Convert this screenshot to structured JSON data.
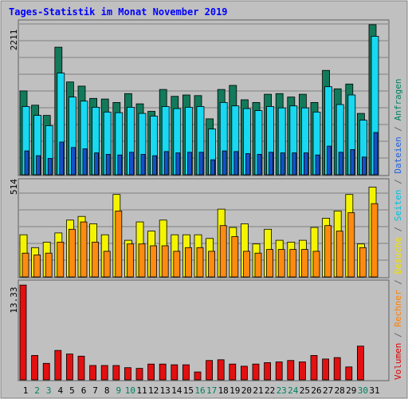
{
  "chart_data": {
    "type": "bar",
    "title": "Tages-Statistik im Monat November 2019",
    "categories": [
      "1",
      "2",
      "3",
      "4",
      "5",
      "6",
      "7",
      "8",
      "9",
      "10",
      "11",
      "12",
      "13",
      "14",
      "15",
      "16",
      "17",
      "18",
      "19",
      "20",
      "21",
      "22",
      "23",
      "24",
      "25",
      "26",
      "27",
      "28",
      "29",
      "30",
      "31"
    ],
    "weekend_days": [
      "2",
      "3",
      "9",
      "10",
      "16",
      "17",
      "23",
      "24",
      "30"
    ],
    "side_legend": [
      {
        "label": "Volumen",
        "color": "#e00000"
      },
      {
        "label": " / ",
        "color": "#666666"
      },
      {
        "label": "Rechner",
        "color": "#ff8000"
      },
      {
        "label": " / ",
        "color": "#666666"
      },
      {
        "label": "Besuche",
        "color": "#f0e000"
      },
      {
        "label": " / ",
        "color": "#666666"
      },
      {
        "label": "Seiten",
        "color": "#00c0e0"
      },
      {
        "label": " / ",
        "color": "#666666"
      },
      {
        "label": "Dateien",
        "color": "#2060e0"
      },
      {
        "label": " / ",
        "color": "#666666"
      },
      {
        "label": "Anfragen",
        "color": "#008060"
      }
    ],
    "panels": [
      {
        "name": "requests",
        "max_label": "2211",
        "ymax": 2211,
        "series": [
          {
            "name": "Anfragen",
            "color": "#127a5a",
            "values": [
              1230,
              1020,
              870,
              1870,
              1360,
              1300,
              1120,
              1110,
              1060,
              1190,
              1040,
              930,
              1250,
              1150,
              1170,
              1160,
              820,
              1250,
              1310,
              1100,
              1060,
              1180,
              1190,
              1140,
              1180,
              1060,
              1530,
              1260,
              1330,
              900,
              2200
            ]
          },
          {
            "name": "Seiten",
            "color": "#18d8f2",
            "values": [
              1000,
              870,
              720,
              1490,
              1140,
              1080,
              990,
              920,
              910,
              990,
              900,
              860,
              1000,
              970,
              990,
              1000,
              670,
              1060,
              1010,
              970,
              940,
              1000,
              980,
              1010,
              980,
              920,
              1290,
              1030,
              1170,
              800,
              2030
            ]
          },
          {
            "name": "Dateien",
            "color": "#1550c8",
            "values": [
              350,
              280,
              240,
              480,
              400,
              380,
              320,
              300,
              290,
              330,
              300,
              280,
              340,
              320,
              330,
              330,
              220,
              350,
              340,
              310,
              300,
              330,
              320,
              320,
              320,
              290,
              420,
              330,
              370,
              260,
              620
            ]
          }
        ]
      },
      {
        "name": "visits",
        "max_label": "514",
        "ymax": 514,
        "series": [
          {
            "name": "Besuche",
            "color": "#f4f400",
            "values": [
              230,
              160,
              190,
              240,
              310,
              330,
              290,
              230,
              450,
              200,
              300,
              250,
              310,
              230,
              230,
              230,
              210,
              370,
              270,
              290,
              180,
              260,
              200,
              190,
              200,
              270,
              320,
              360,
              450,
              180,
              490
            ]
          },
          {
            "name": "Rechner",
            "color": "#ff8a10",
            "values": [
              130,
              120,
              130,
              190,
              260,
              300,
              190,
              140,
              360,
              180,
              180,
              170,
              170,
              140,
              160,
              160,
              140,
              280,
              220,
              140,
              130,
              150,
              150,
              150,
              150,
              140,
              280,
              250,
              350,
              160,
              400
            ]
          }
        ]
      },
      {
        "name": "volume",
        "max_label": "13.33",
        "ymax": 13.33,
        "series": [
          {
            "name": "Volumen",
            "color": "#e21010",
            "values": [
              13.2,
              3.4,
              2.3,
              4.1,
              3.6,
              3.3,
              2.0,
              2.0,
              2.0,
              1.7,
              1.6,
              2.2,
              2.2,
              2.1,
              2.1,
              1.1,
              2.7,
              2.8,
              2.2,
              1.9,
              2.2,
              2.4,
              2.5,
              2.7,
              2.5,
              3.4,
              2.9,
              3.1,
              1.8,
              4.7,
              0
            ]
          }
        ]
      }
    ]
  }
}
